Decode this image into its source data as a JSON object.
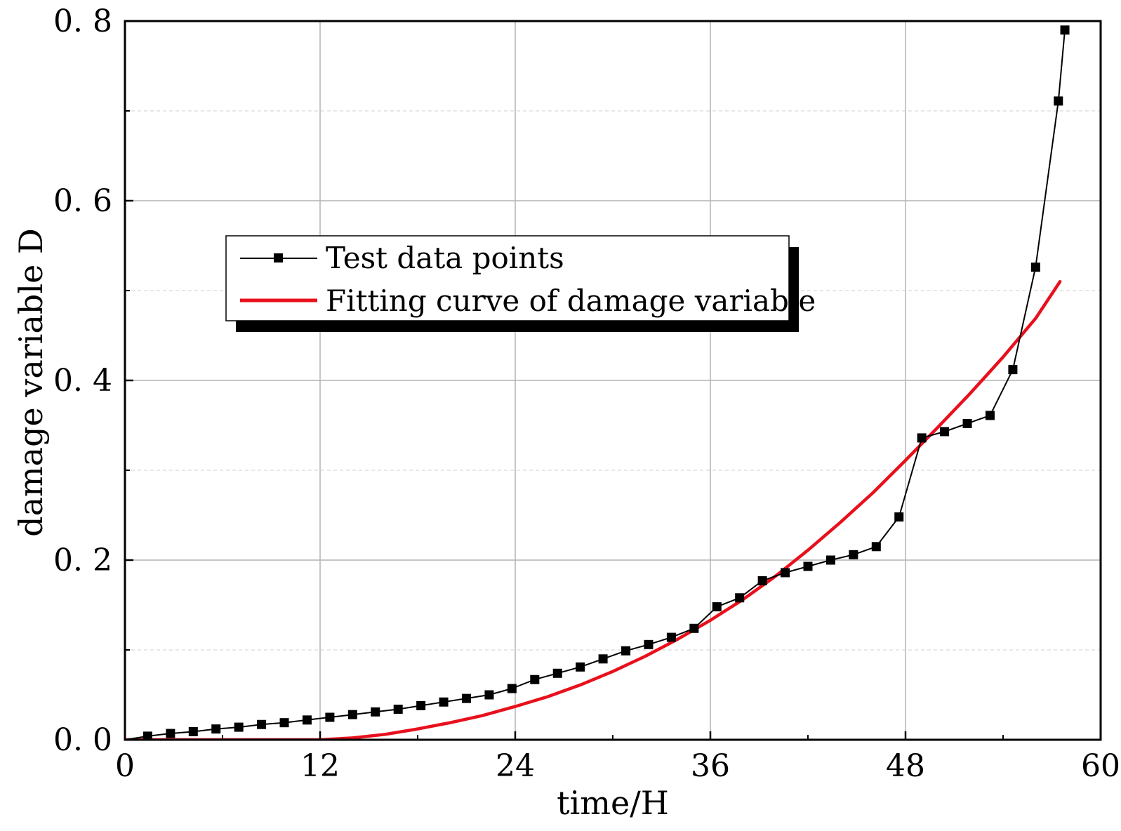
{
  "chart_data": {
    "type": "line",
    "xlabel": "time/H",
    "ylabel": "damage variable D",
    "xlim": [
      0,
      60
    ],
    "ylim": [
      0,
      0.8
    ],
    "x_ticks": [
      0,
      12,
      24,
      36,
      48,
      60
    ],
    "x_tick_labels": [
      "0",
      "12",
      "24",
      "36",
      "48",
      "60"
    ],
    "y_ticks": [
      0,
      0.2,
      0.4,
      0.6,
      0.8
    ],
    "y_tick_labels": [
      "0. 0",
      "0. 2",
      "0. 4",
      "0. 6",
      "0. 8"
    ],
    "grid": true,
    "legend_placement": "upper-left-center",
    "series": [
      {
        "name": "Test data points",
        "color": "#000000",
        "marker": "square",
        "x": [
          0,
          1.4,
          2.8,
          4.2,
          5.6,
          7.0,
          8.4,
          9.8,
          11.2,
          12.6,
          14.0,
          15.4,
          16.8,
          18.2,
          19.6,
          21.0,
          22.4,
          23.8,
          25.2,
          26.6,
          28.0,
          29.4,
          30.8,
          32.2,
          33.6,
          35.0,
          36.4,
          37.8,
          39.2,
          40.6,
          42.0,
          43.4,
          44.8,
          46.2,
          47.6,
          49.0,
          50.4,
          51.8,
          53.2,
          54.6,
          56.0,
          57.4,
          57.8
        ],
        "y": [
          0.0,
          0.004,
          0.007,
          0.009,
          0.012,
          0.014,
          0.017,
          0.019,
          0.022,
          0.025,
          0.028,
          0.031,
          0.034,
          0.038,
          0.042,
          0.046,
          0.05,
          0.057,
          0.067,
          0.074,
          0.081,
          0.09,
          0.099,
          0.106,
          0.114,
          0.124,
          0.148,
          0.158,
          0.177,
          0.186,
          0.193,
          0.2,
          0.206,
          0.215,
          0.248,
          0.336,
          0.343,
          0.352,
          0.361,
          0.412,
          0.526,
          0.711,
          0.79
        ]
      },
      {
        "name": "Fitting curve of damage variable",
        "color": "#e8101c",
        "marker": "none",
        "x": [
          0,
          6,
          12,
          14,
          16,
          18,
          20,
          22,
          24,
          26,
          28,
          30,
          32,
          34,
          36,
          38,
          40,
          42,
          44,
          46,
          48,
          50,
          52,
          54,
          56,
          57.5
        ],
        "y": [
          0,
          0,
          0,
          0.002,
          0.006,
          0.012,
          0.019,
          0.027,
          0.037,
          0.048,
          0.061,
          0.076,
          0.093,
          0.112,
          0.133,
          0.156,
          0.182,
          0.211,
          0.242,
          0.275,
          0.311,
          0.348,
          0.386,
          0.426,
          0.469,
          0.51
        ]
      }
    ]
  }
}
